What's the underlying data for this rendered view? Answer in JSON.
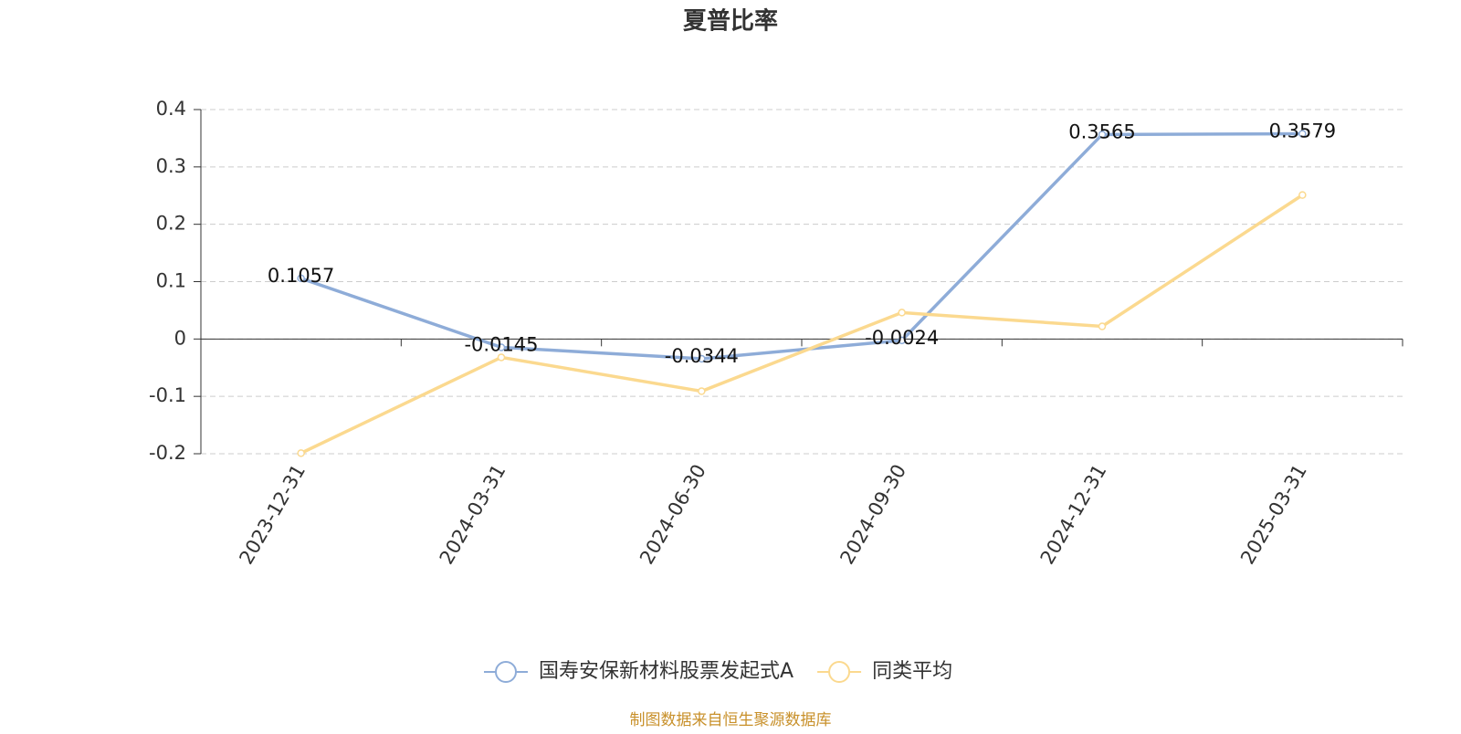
{
  "chart_data": {
    "type": "line",
    "title": "夏普比率",
    "categories": [
      "2023-12-31",
      "2024-03-31",
      "2024-06-30",
      "2024-09-30",
      "2024-12-31",
      "2025-03-31"
    ],
    "series": [
      {
        "name": "国寿安保新材料股票发起式A",
        "color": "#8eacd8",
        "values": [
          0.1057,
          -0.0145,
          -0.0344,
          -0.0024,
          0.3565,
          0.3579
        ],
        "show_labels": true
      },
      {
        "name": "同类平均",
        "color": "#fbd98f",
        "values": [
          -0.199,
          -0.032,
          -0.091,
          0.046,
          0.022,
          0.251
        ],
        "show_labels": false
      }
    ],
    "ylim": [
      -0.2,
      0.4
    ],
    "yticks": [
      -0.2,
      -0.1,
      0,
      0.1,
      0.2,
      0.3,
      0.4
    ],
    "grid": true,
    "legend": "bottom",
    "source": "制图数据来自恒生聚源数据库"
  }
}
